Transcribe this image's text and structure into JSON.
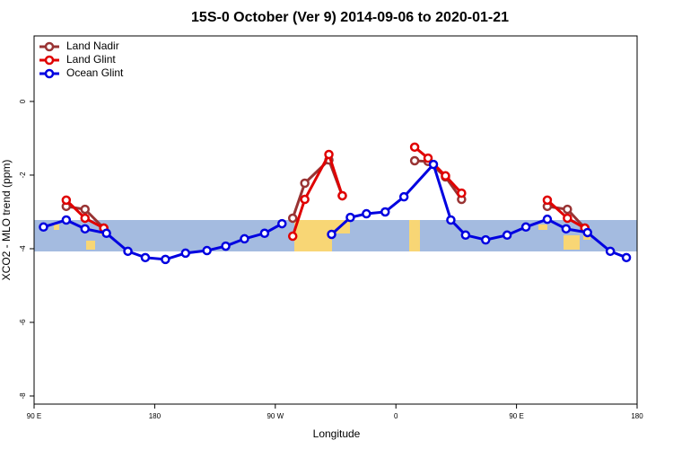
{
  "chart_data": {
    "type": "line",
    "title": "15S-0 October (Ver 9)   2014-09-06 to 2020-01-21",
    "x_label": "Longitude",
    "y_label": "XCO2 - MLO trend (ppm)",
    "xlim": [
      90,
      540
    ],
    "xticks": [
      {
        "value": 90,
        "label": "90 E"
      },
      180,
      {
        "value": 270,
        "label": "90 W"
      },
      {
        "value": 360,
        "label": "0"
      },
      {
        "value": 450,
        "label": "90 E"
      },
      {
        "value": 540,
        "label": "180"
      }
    ],
    "ylim": [
      -8.22,
      1.78
    ],
    "yticks": [
      0,
      -2,
      -4,
      -6,
      -8
    ],
    "legend": "upper left",
    "series": [
      {
        "name": "Land Nadir",
        "color": "#993333",
        "x": [
          114,
          128,
          142,
          null,
          283,
          292,
          310,
          320,
          null,
          374,
          384,
          397,
          409,
          null,
          473,
          488,
          501
        ],
        "values": [
          -2.85,
          -2.93,
          -3.44,
          null,
          -3.17,
          -2.22,
          -1.59,
          -2.56,
          null,
          -1.61,
          -1.63,
          -2.05,
          -2.66,
          null,
          -2.85,
          -2.93,
          -3.44
        ]
      },
      {
        "name": "Land Glint",
        "color": "#e00000",
        "x": [
          114,
          128,
          142,
          null,
          283,
          292,
          310,
          320,
          null,
          374,
          384,
          397,
          409,
          null,
          473,
          488,
          501
        ],
        "values": [
          -2.68,
          -3.17,
          -3.44,
          null,
          -3.66,
          -2.66,
          -1.44,
          -2.56,
          null,
          -1.24,
          -1.54,
          -2.02,
          -2.49,
          null,
          -2.68,
          -3.17,
          -3.44
        ]
      },
      {
        "name": "Ocean Glint",
        "color": "#0000e0",
        "x": [
          97,
          114,
          128,
          144,
          160,
          173,
          188,
          203,
          219,
          233,
          247,
          262,
          275,
          null,
          312,
          326,
          338,
          352,
          366,
          388,
          401,
          412,
          427,
          443,
          457,
          473,
          487,
          503,
          520,
          532
        ],
        "values": [
          -3.41,
          -3.22,
          -3.46,
          -3.58,
          -4.07,
          -4.24,
          -4.29,
          -4.12,
          -4.05,
          -3.93,
          -3.73,
          -3.58,
          -3.32,
          null,
          -3.61,
          -3.15,
          -3.05,
          -3.0,
          -2.59,
          -1.71,
          -3.22,
          -3.63,
          -3.76,
          -3.63,
          -3.41,
          -3.2,
          -3.46,
          -3.56,
          -4.07,
          -4.24
        ]
      }
    ]
  }
}
